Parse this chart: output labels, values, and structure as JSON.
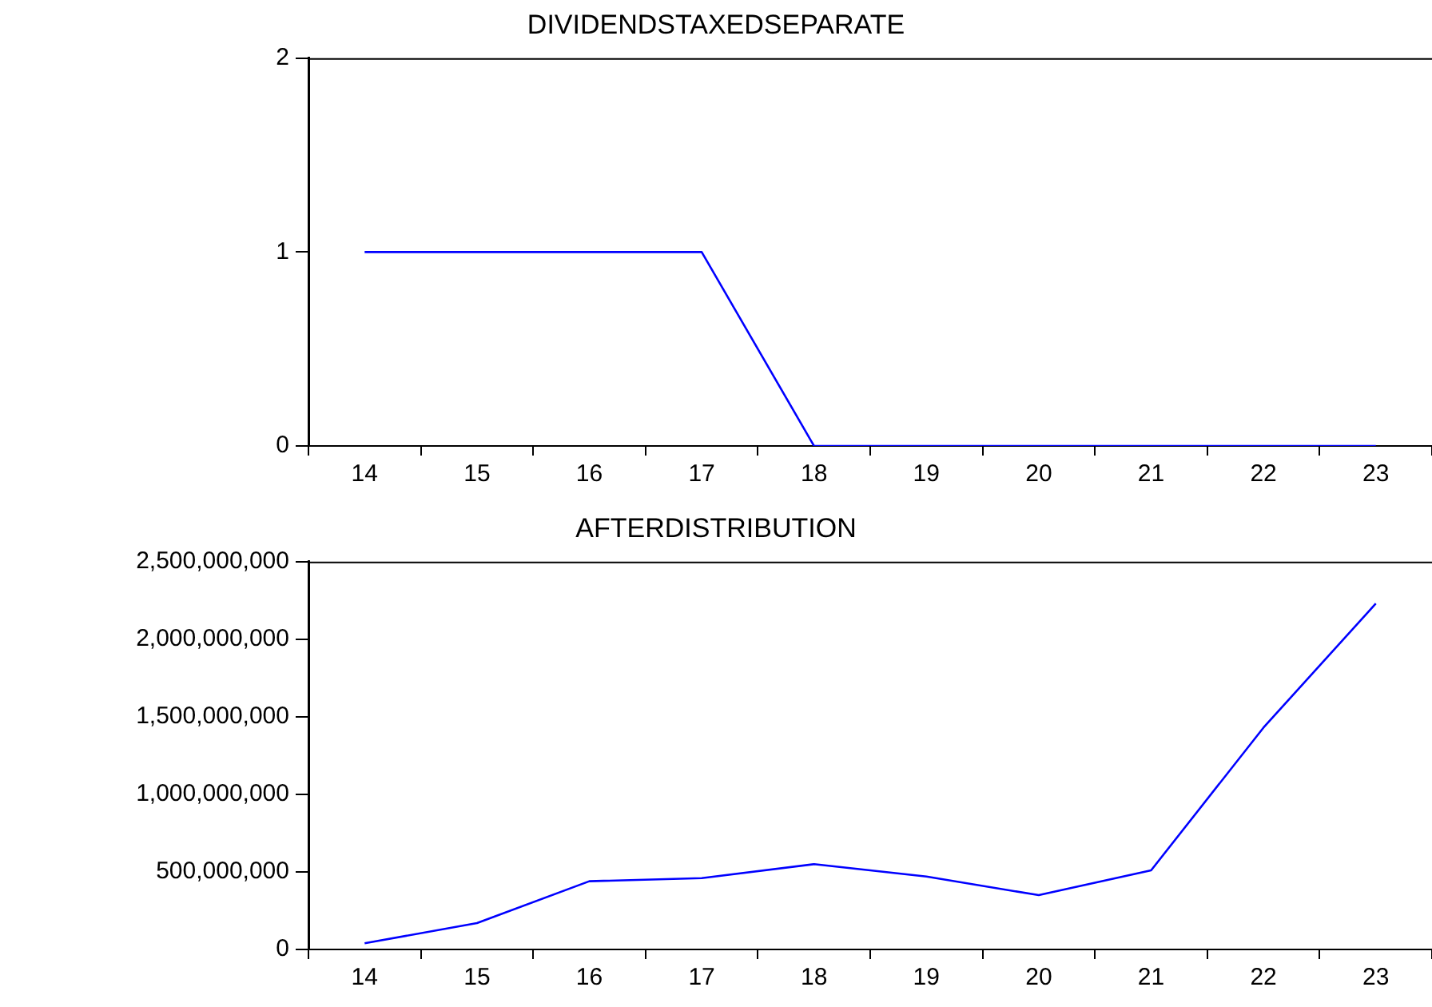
{
  "chart_data": [
    {
      "type": "line",
      "title": "DIVIDENDSTAXEDSEPARATE",
      "categories": [
        "14",
        "15",
        "16",
        "17",
        "18",
        "19",
        "20",
        "21",
        "22",
        "23"
      ],
      "series": [
        {
          "color": "#0000ff",
          "values": [
            1,
            1,
            1,
            1,
            0,
            0,
            0,
            0,
            0,
            0
          ]
        }
      ],
      "ylim": [
        0,
        2
      ],
      "yticks": [
        0,
        1,
        2
      ],
      "marker": "none",
      "line_style": "solid"
    },
    {
      "type": "line",
      "title": "AFTERDISTRIBUTION",
      "categories": [
        "14",
        "15",
        "16",
        "17",
        "18",
        "19",
        "20",
        "21",
        "22",
        "23"
      ],
      "series": [
        {
          "color": "#0000ff",
          "values": [
            40000000,
            170000000,
            440000000,
            460000000,
            550000000,
            470000000,
            350000000,
            510000000,
            1430000000,
            2230000000
          ]
        }
      ],
      "ylim": [
        0,
        2500000000
      ],
      "yticks": [
        0,
        {
          "value": 500000000,
          "label": "500,000,000"
        },
        {
          "value": 1000000000,
          "label": "1,000,000,000"
        },
        {
          "value": 1500000000,
          "label": "1,500,000,000"
        },
        {
          "value": 2000000000,
          "label": "2,000,000,000"
        },
        {
          "value": 2500000000,
          "label": "2,500,000,000"
        }
      ],
      "marker": "none",
      "line_style": "solid"
    }
  ]
}
